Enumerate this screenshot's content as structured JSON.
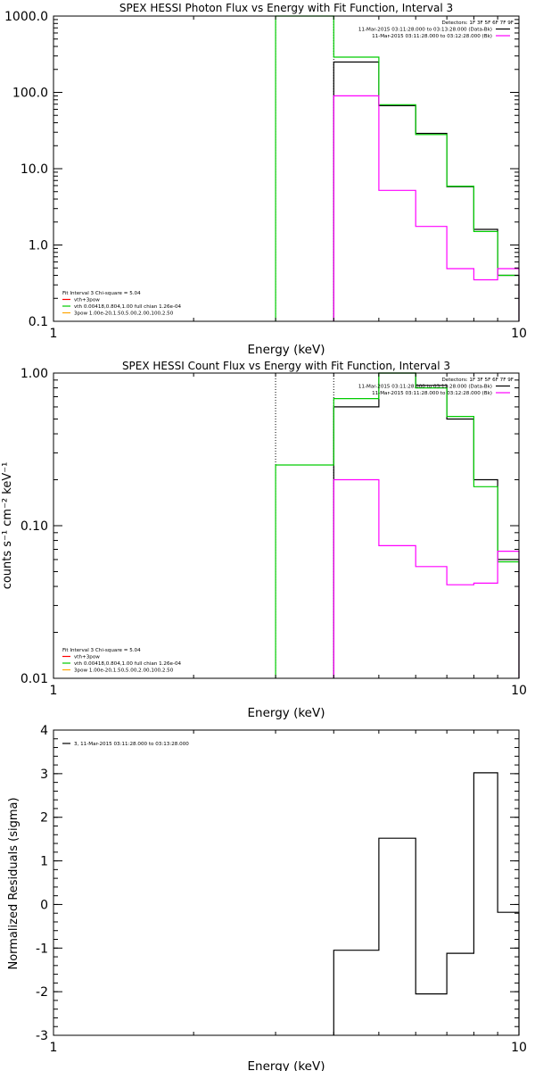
{
  "chart_data": [
    {
      "type": "line",
      "title": "SPEX HESSI Photon Flux vs Energy with Fit Function, Interval 3",
      "xlabel": "Energy (keV)",
      "ylabel": "",
      "x_scale": "log",
      "y_scale": "log",
      "xlim": [
        1,
        10
      ],
      "ylim": [
        0.1,
        1000
      ],
      "x_ticks": [
        "1",
        "10"
      ],
      "y_ticks": [
        "0.1",
        "1.0",
        "10.0",
        "100.0",
        "1000.0"
      ],
      "legend_top_right": [
        {
          "text": "Detectors: 1F 3F 5F 6F 7F 9F",
          "color": "#000000",
          "swatch": false
        },
        {
          "text": "11-Mar-2015 03:11:28.000 to 03:13:28.000 (Data-Bk)",
          "color": "#000000",
          "swatch": true
        },
        {
          "text": "11-Mar-2015 03:11:28.000 to 03:12:28.000 (Bk)",
          "color": "#ff00ff",
          "swatch": true
        }
      ],
      "legend_bottom_left": [
        {
          "text": "Fit Interval 3   Chi-square = 5.04",
          "color": "#000000",
          "swatch": false
        },
        {
          "text": "vth+3pow",
          "color": "#ff0000",
          "swatch": true
        },
        {
          "text": "vth 0.00418,0.804,1.00  full chian 1.26e-04",
          "color": "#00cc00",
          "swatch": true
        },
        {
          "text": "3pow 1.00e-20,1.50,5.00,2.00,100,2.50",
          "color": "#ffa500",
          "swatch": true
        }
      ],
      "fit_range_keV": [
        3,
        4
      ],
      "bin_edges_keV": [
        3.0,
        4.0,
        5.0,
        6.0,
        7.0,
        8.0,
        9.0,
        10.0
      ],
      "series": [
        {
          "name": "11-Mar-2015 03:11:28.000 to 03:13:28.000 (Data-Bk)",
          "color": "#000000",
          "values": [
            null,
            250,
            67,
            29,
            5.8,
            1.6,
            0.4
          ]
        },
        {
          "name": "vth+3pow",
          "color": "#00cc00",
          "values": [
            1000,
            290,
            69,
            28,
            5.9,
            1.5,
            0.4
          ]
        },
        {
          "name": "11-Mar-2015 03:11:28.000 to 03:12:28.000 (Bk)",
          "color": "#ff00ff",
          "values": [
            null,
            90,
            5.2,
            1.75,
            0.49,
            0.35,
            0.49
          ]
        }
      ]
    },
    {
      "type": "line",
      "title": "SPEX HESSI Count Flux vs Energy with Fit Function, Interval 3",
      "xlabel": "Energy (keV)",
      "ylabel": "counts s⁻¹ cm⁻² keV⁻¹",
      "x_scale": "log",
      "y_scale": "log",
      "xlim": [
        1,
        10
      ],
      "ylim": [
        0.01,
        1.0
      ],
      "x_ticks": [
        "1",
        "10"
      ],
      "y_ticks": [
        "0.01",
        "0.10",
        "1.00"
      ],
      "legend_top_right": [
        {
          "text": "Detectors: 1F 3F 5F 6F 7F 9F",
          "color": "#000000",
          "swatch": false
        },
        {
          "text": "11-Mar-2015 03:11:28.000 to 03:13:28.000 (Data-Bk)",
          "color": "#000000",
          "swatch": true
        },
        {
          "text": "11-Mar-2015 03:11:28.000 to 03:12:28.000 (Bk)",
          "color": "#ff00ff",
          "swatch": true
        }
      ],
      "legend_bottom_left": [
        {
          "text": "Fit Interval 3   Chi-square = 5.04",
          "color": "#000000",
          "swatch": false
        },
        {
          "text": "vth+3pow",
          "color": "#ff0000",
          "swatch": true
        },
        {
          "text": "vth 0.00418,0.804,1.00  full chian 1.26e-04",
          "color": "#00cc00",
          "swatch": true
        },
        {
          "text": "3pow 1.00e-20,1.50,5.00,2.00,100,2.50",
          "color": "#ffa500",
          "swatch": true
        }
      ],
      "fit_range_keV": [
        3,
        4
      ],
      "bin_edges_keV": [
        3.0,
        4.0,
        5.0,
        6.0,
        7.0,
        8.0,
        9.0,
        10.0
      ],
      "series": [
        {
          "name": "11-Mar-2015 03:11:28.000 to 03:13:28.000 (Data-Bk)",
          "color": "#000000",
          "values": [
            null,
            0.6,
            1.0,
            0.83,
            0.5,
            0.2,
            0.06
          ]
        },
        {
          "name": "vth+3pow",
          "color": "#00cc00",
          "values": [
            0.25,
            0.68,
            1.0,
            0.8,
            0.52,
            0.18,
            0.058
          ]
        },
        {
          "name": "11-Mar-2015 03:11:28.000 to 03:12:28.000 (Bk)",
          "color": "#ff00ff",
          "values": [
            null,
            0.2,
            0.074,
            0.054,
            0.041,
            0.042,
            0.068
          ]
        }
      ]
    },
    {
      "type": "line",
      "title": "",
      "xlabel": "Energy (keV)",
      "ylabel": "Normalized Residuals (sigma)",
      "x_scale": "log",
      "y_scale": "linear",
      "xlim": [
        1,
        10
      ],
      "ylim": [
        -3,
        4
      ],
      "x_ticks": [
        "1",
        "10"
      ],
      "y_ticks": [
        "-3",
        "-2",
        "-1",
        "0",
        "1",
        "2",
        "3",
        "4"
      ],
      "legend_top_left": [
        {
          "text": "3, 11-Mar-2015 03:11:28.000 to 03:13:28.000",
          "color": "#000000",
          "swatch": true
        }
      ],
      "bin_edges_keV": [
        4.0,
        5.0,
        6.0,
        7.0,
        8.0,
        9.0,
        10.0
      ],
      "series": [
        {
          "name": "3, 11-Mar-2015 03:11:28.000 to 03:13:28.000",
          "color": "#000000",
          "values": [
            -1.05,
            1.52,
            -2.05,
            -1.12,
            3.02,
            -0.18
          ]
        }
      ]
    }
  ]
}
